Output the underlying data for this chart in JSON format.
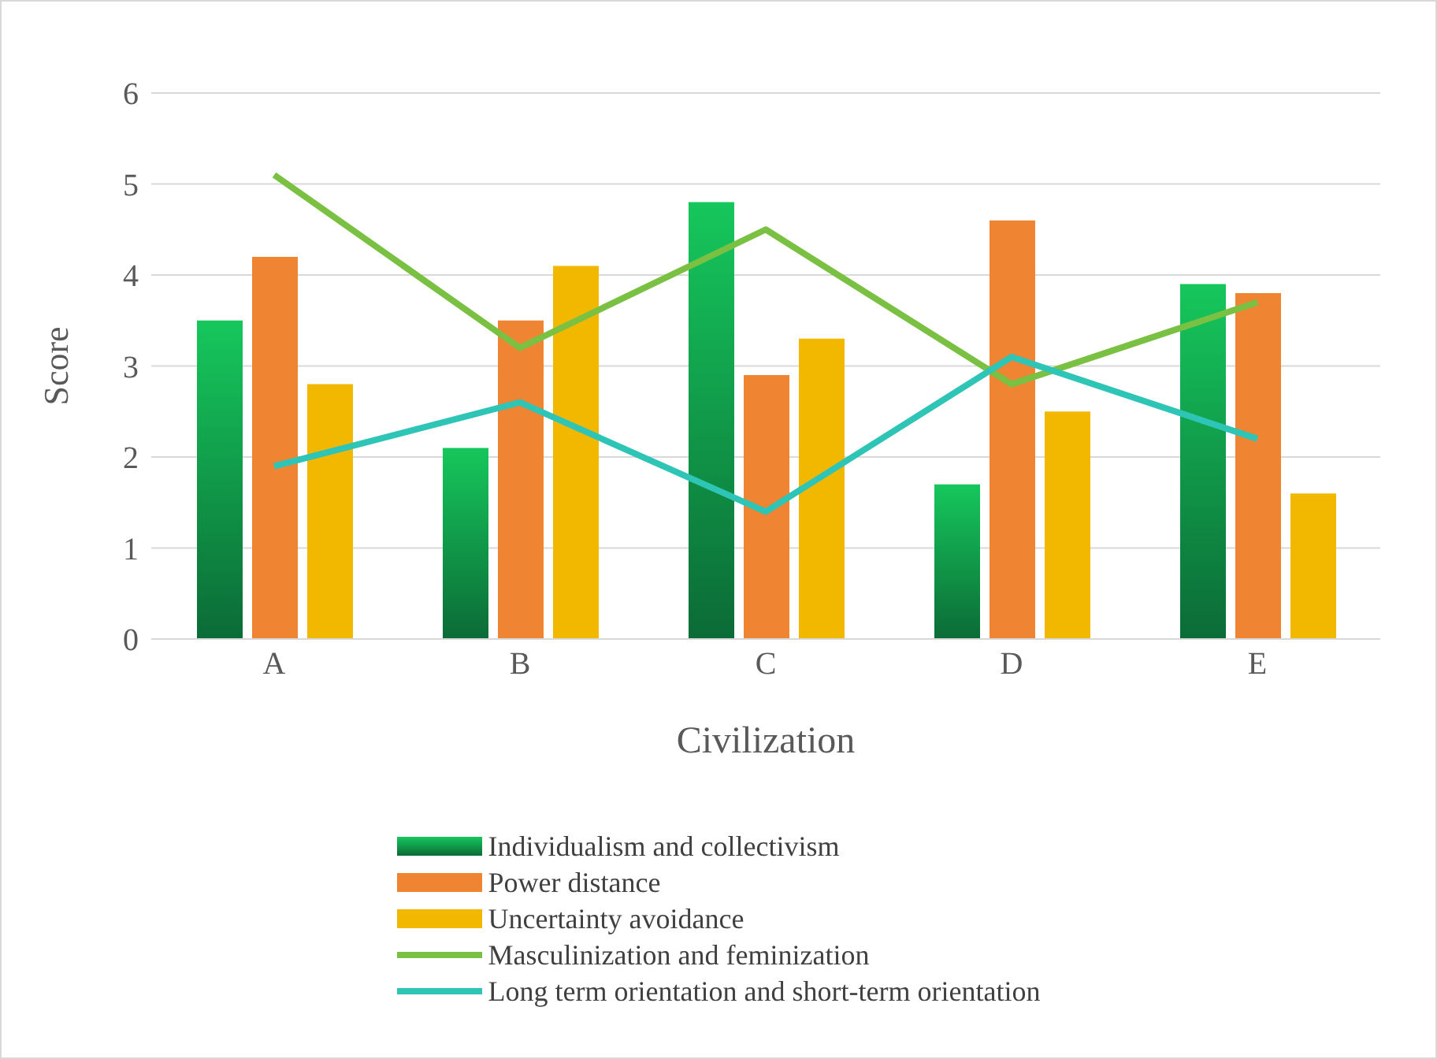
{
  "chart_data": {
    "type": "bar",
    "xlabel": "Civilization",
    "ylabel": "Score",
    "categories": [
      "A",
      "B",
      "C",
      "D",
      "E"
    ],
    "series": [
      {
        "name": "Individualism and collectivism",
        "color": "#16c75c",
        "values": [
          3.5,
          2.1,
          4.8,
          1.7,
          3.9
        ]
      },
      {
        "name": "Power distance",
        "color": "#ef8433",
        "values": [
          4.2,
          3.5,
          2.9,
          4.6,
          3.8
        ]
      },
      {
        "name": "Uncertainty avoidance",
        "color": "#f2b800",
        "values": [
          2.8,
          4.1,
          3.3,
          2.5,
          1.6
        ]
      },
      {
        "name": "Masculinization and feminization",
        "type": "line",
        "color": "#7ac143",
        "values": [
          5.1,
          3.2,
          4.5,
          2.8,
          3.7
        ]
      },
      {
        "name": "Long term orientation and short-term orientation",
        "type": "line",
        "color": "#2ec4b6",
        "values": [
          1.9,
          2.6,
          1.4,
          3.1,
          2.2
        ]
      }
    ],
    "ylim": [
      0,
      6
    ],
    "yticks": [
      0,
      1,
      2,
      3,
      4,
      5,
      6
    ],
    "grid": "y",
    "legend": "bottom",
    "marker": "none"
  }
}
